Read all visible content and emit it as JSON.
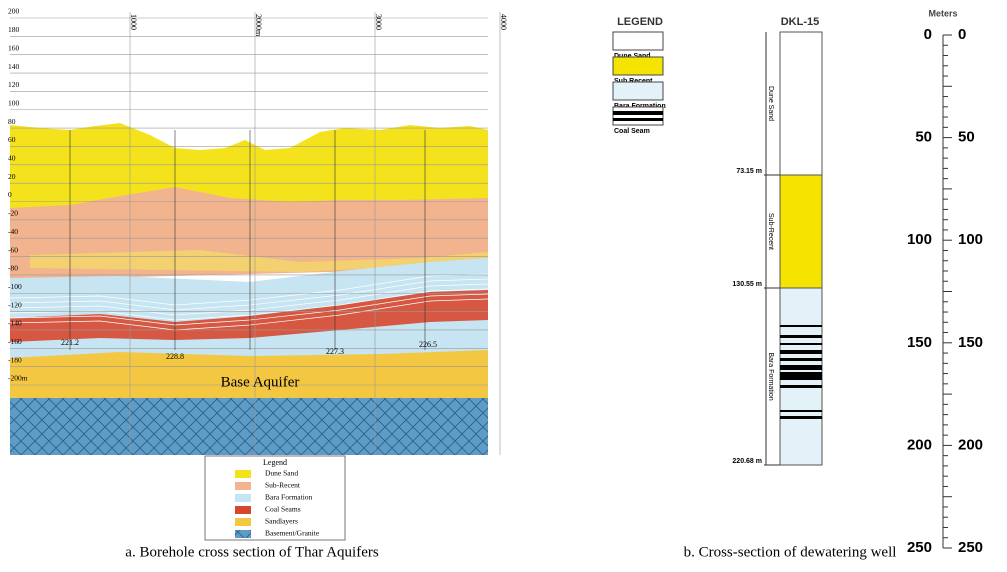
{
  "left_panel": {
    "y_labels": [
      "200",
      "180",
      "160",
      "140",
      "120",
      "100",
      "80",
      "60",
      "40",
      "20",
      "0",
      "-20",
      "-40",
      "-60",
      "-80",
      "-100",
      "-120",
      "-140",
      "-160",
      "-180",
      "-200m"
    ],
    "x_labels": [
      "1000",
      "2000m",
      "3000",
      "4000"
    ],
    "borehole_depths": [
      "221.2",
      "228.8",
      "227.3",
      "226.5"
    ],
    "annotation": "Base Aquifer",
    "legend": {
      "title": "Legend",
      "items": [
        "Dune Sand",
        "Sub-Recent",
        "Bara Formation",
        "Coal Seams",
        "Sandlayers",
        "Basement/Granite"
      ]
    },
    "caption": "a. Borehole cross section of Thar Aquifers"
  },
  "right_panel": {
    "legend": {
      "title": "LEGEND",
      "items": [
        "Dune Sand",
        "Sub Recent",
        "Bara Formation",
        "Coal Seam"
      ]
    },
    "well": {
      "name": "DKL-15",
      "depths": [
        "73.15 m",
        "130.55 m",
        "220.68 m"
      ],
      "units": [
        "Dune Sand",
        "Sub-Recent",
        "Bara Formation"
      ]
    },
    "scale": {
      "title": "Meters",
      "left_labels": [
        0,
        50,
        100,
        150,
        200,
        250
      ],
      "right_labels": [
        0,
        50,
        100,
        150,
        200,
        250
      ]
    },
    "caption": "b. Cross-section of dewatering well"
  }
}
